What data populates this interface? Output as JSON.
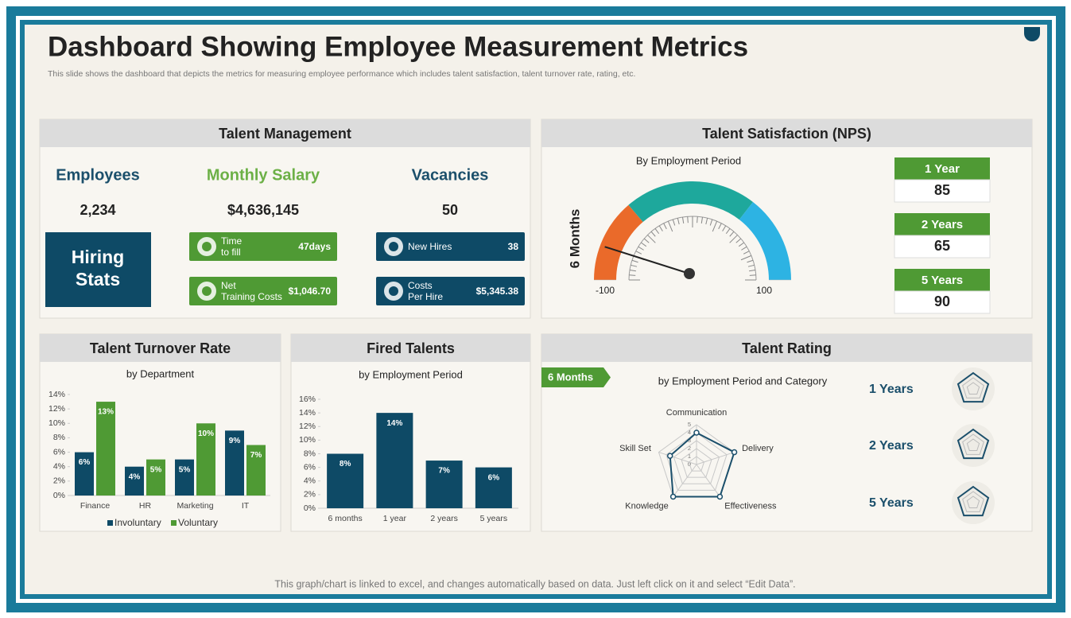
{
  "header": {
    "title": "Dashboard Showing Employee Measurement Metrics",
    "subtitle": "This slide shows the dashboard that depicts the metrics for measuring employee performance which includes talent satisfaction, talent turnover rate, rating, etc."
  },
  "talent_management": {
    "title": "Talent Management",
    "kpis": [
      {
        "label": "Employees",
        "value": "2,234"
      },
      {
        "label": "Monthly Salary",
        "value": "$4,636,145"
      },
      {
        "label": "Vacancies",
        "value": "50"
      }
    ],
    "hiring_stats": "Hiring Stats",
    "cards": [
      {
        "label": "Time to fill",
        "value": "47days"
      },
      {
        "label": "Net Training Costs",
        "value": "$1,046.70"
      },
      {
        "label": "New Hires",
        "value": "38"
      },
      {
        "label": "Costs Per Hire",
        "value": "$5,345.38"
      }
    ]
  },
  "chart_data": [
    {
      "type": "gauge",
      "title": "Talent Satisfaction (NPS)",
      "subtitle": "By Employment Period",
      "axis_label": "6 Months",
      "xlim": [
        -100,
        100
      ],
      "xticks": [
        -100,
        100
      ],
      "value": -77,
      "bands": [
        {
          "from": -100,
          "to": -45,
          "color": "#ea6a2a"
        },
        {
          "from": -45,
          "to": 42,
          "color": "#1ea89c"
        },
        {
          "from": 42,
          "to": 100,
          "color": "#2db3e3"
        }
      ],
      "periods": [
        {
          "name": "1 Year",
          "value": 85
        },
        {
          "name": "2 Years",
          "value": 65
        },
        {
          "name": "5 Years",
          "value": 90
        }
      ]
    },
    {
      "type": "bar",
      "title": "Talent Turnover Rate",
      "subtitle": "by Department",
      "categories": [
        "Finance",
        "HR",
        "Marketing",
        "IT"
      ],
      "series": [
        {
          "name": "Involuntary",
          "color": "#0e4a66",
          "values": [
            6,
            4,
            5,
            9
          ],
          "value_labels": [
            "6%",
            "4%",
            "5%",
            "9%"
          ]
        },
        {
          "name": "Voluntary",
          "color": "#4f9a34",
          "values": [
            13,
            5,
            10,
            7
          ],
          "value_labels": [
            "13%",
            "5%",
            "10%",
            "7%"
          ]
        }
      ],
      "ylim": [
        0,
        14
      ],
      "yticks": [
        {
          "value": 0,
          "label": "0%"
        },
        {
          "value": 2,
          "label": "2%"
        },
        {
          "value": 4,
          "label": "4%"
        },
        {
          "value": 6,
          "label": "6%"
        },
        {
          "value": 8,
          "label": "8%"
        },
        {
          "value": 10,
          "label": "10%"
        },
        {
          "value": 12,
          "label": "12%"
        },
        {
          "value": 14,
          "label": "14%"
        }
      ],
      "legend": "bottom"
    },
    {
      "type": "bar",
      "title": "Fired Talents",
      "subtitle": "by Employment Period",
      "categories": [
        "6 months",
        "1 year",
        "2 years",
        "5 years"
      ],
      "values": [
        8,
        14,
        7,
        6
      ],
      "value_labels": [
        "8%",
        "14%",
        "7%",
        "6%"
      ],
      "color": "#0e4a66",
      "ylim": [
        0,
        16
      ],
      "yticks": [
        {
          "value": 0,
          "label": "0%"
        },
        {
          "value": 2,
          "label": "2%"
        },
        {
          "value": 4,
          "label": "4%"
        },
        {
          "value": 6,
          "label": "6%"
        },
        {
          "value": 8,
          "label": "8%"
        },
        {
          "value": 10,
          "label": "10%"
        },
        {
          "value": 12,
          "label": "12%"
        },
        {
          "value": 14,
          "label": "14%"
        },
        {
          "value": 16,
          "label": "16%"
        }
      ]
    },
    {
      "type": "radar",
      "title": "Talent Rating",
      "subtitle": "by Employment Period and Category",
      "tag": "6 Months",
      "categories": [
        "Communication",
        "Delivery",
        "Effectiveness",
        "Knowledge",
        "Skill Set"
      ],
      "values": [
        4,
        5,
        5,
        5,
        3.5
      ],
      "color": "#1b4f6b",
      "rlim": [
        0,
        5
      ],
      "rticks": [
        0,
        1,
        2,
        3,
        4,
        5
      ],
      "periods": [
        "1 Years",
        "2 Years",
        "5 Years"
      ]
    }
  ],
  "footer": "This graph/chart is linked to excel, and changes automatically based on data. Just left click on it and select “Edit Data”."
}
